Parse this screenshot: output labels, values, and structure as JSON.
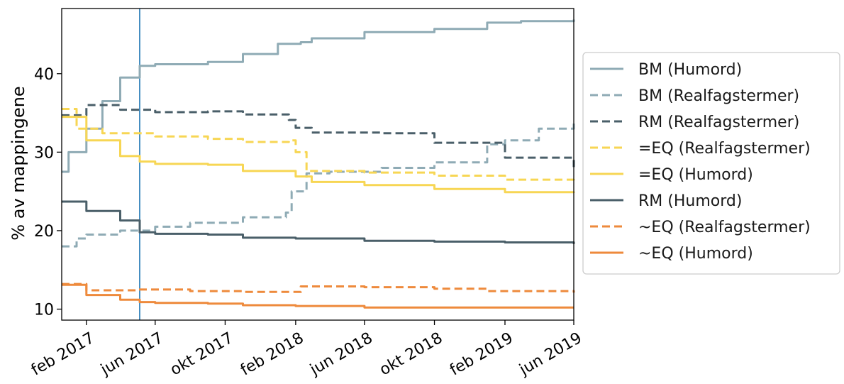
{
  "chart_data": {
    "type": "line",
    "title": "",
    "xlabel": "",
    "ylabel": "% av mappingene",
    "x_range": [
      "2016-12-20",
      "2019-06-01"
    ],
    "ylim": [
      8.6,
      48.3
    ],
    "y_ticks": [
      10,
      20,
      30,
      40
    ],
    "x_ticks": [
      {
        "date": "2017-02-01",
        "label": "feb 2017"
      },
      {
        "date": "2017-06-01",
        "label": "jun 2017"
      },
      {
        "date": "2017-10-01",
        "label": "okt 2017"
      },
      {
        "date": "2018-02-01",
        "label": "feb 2018"
      },
      {
        "date": "2018-06-01",
        "label": "jun 2018"
      },
      {
        "date": "2018-10-01",
        "label": "okt 2018"
      },
      {
        "date": "2019-02-01",
        "label": "feb 2019"
      },
      {
        "date": "2019-06-01",
        "label": "jun 2019"
      }
    ],
    "vertical_marker": {
      "date": "2017-05-05",
      "color": "#1f77b4"
    },
    "grid": false,
    "legend_position": "right",
    "series": [
      {
        "name": "BM (Humord)",
        "color": "#8fabb5",
        "style": "solid",
        "points": [
          [
            "2016-12-20",
            27.5
          ],
          [
            "2017-01-01",
            30
          ],
          [
            "2017-02-01",
            33
          ],
          [
            "2017-03-01",
            36.5
          ],
          [
            "2017-04-01",
            39.5
          ],
          [
            "2017-05-05",
            41
          ],
          [
            "2017-06-01",
            41.2
          ],
          [
            "2017-09-01",
            41.5
          ],
          [
            "2017-11-01",
            42.5
          ],
          [
            "2018-01-01",
            43.8
          ],
          [
            "2018-02-10",
            44
          ],
          [
            "2018-03-01",
            44.5
          ],
          [
            "2018-06-01",
            45.3
          ],
          [
            "2018-10-01",
            45.7
          ],
          [
            "2019-01-01",
            46.5
          ],
          [
            "2019-03-01",
            46.7
          ],
          [
            "2019-06-01",
            46.9
          ]
        ]
      },
      {
        "name": "BM (Realfagstermer)",
        "color": "#8fabb5",
        "style": "dashed",
        "points": [
          [
            "2016-12-20",
            18
          ],
          [
            "2017-01-15",
            19
          ],
          [
            "2017-02-01",
            19.5
          ],
          [
            "2017-04-01",
            20
          ],
          [
            "2017-06-01",
            20.5
          ],
          [
            "2017-08-01",
            21
          ],
          [
            "2017-11-01",
            21.7
          ],
          [
            "2018-01-15",
            22.3
          ],
          [
            "2018-01-25",
            25
          ],
          [
            "2018-02-20",
            27.3
          ],
          [
            "2018-04-01",
            27.5
          ],
          [
            "2018-07-01",
            28
          ],
          [
            "2018-10-01",
            28.7
          ],
          [
            "2019-01-01",
            31
          ],
          [
            "2019-02-01",
            31.5
          ],
          [
            "2019-04-01",
            33
          ],
          [
            "2019-06-01",
            33.8
          ]
        ]
      },
      {
        "name": "RM (Realfagstermer)",
        "color": "#4a5f69",
        "style": "dashed",
        "points": [
          [
            "2016-12-20",
            34.7
          ],
          [
            "2017-02-01",
            36
          ],
          [
            "2017-04-01",
            35.4
          ],
          [
            "2017-06-01",
            35.1
          ],
          [
            "2017-09-01",
            35.2
          ],
          [
            "2017-11-01",
            34.8
          ],
          [
            "2018-01-20",
            34.1
          ],
          [
            "2018-02-01",
            33.1
          ],
          [
            "2018-03-01",
            32.5
          ],
          [
            "2018-07-01",
            32.4
          ],
          [
            "2018-10-01",
            31.2
          ],
          [
            "2019-02-01",
            29.3
          ],
          [
            "2019-06-01",
            28.1
          ]
        ]
      },
      {
        "name": "=EQ (Realfagstermer)",
        "color": "#f7d654",
        "style": "dashed",
        "points": [
          [
            "2016-12-20",
            35.5
          ],
          [
            "2017-01-15",
            33
          ],
          [
            "2017-03-01",
            32.4
          ],
          [
            "2017-06-01",
            32
          ],
          [
            "2017-09-01",
            31.7
          ],
          [
            "2017-11-01",
            31.3
          ],
          [
            "2018-01-20",
            31.5
          ],
          [
            "2018-02-01",
            30
          ],
          [
            "2018-02-20",
            27.6
          ],
          [
            "2018-06-01",
            27.4
          ],
          [
            "2018-10-01",
            27
          ],
          [
            "2019-02-01",
            26.5
          ],
          [
            "2019-06-01",
            26.2
          ]
        ]
      },
      {
        "name": "=EQ (Humord)",
        "color": "#f7d654",
        "style": "solid",
        "points": [
          [
            "2016-12-20",
            34.5
          ],
          [
            "2017-02-01",
            31.5
          ],
          [
            "2017-04-01",
            29.5
          ],
          [
            "2017-05-05",
            28.8
          ],
          [
            "2017-06-01",
            28.5
          ],
          [
            "2017-09-01",
            28.4
          ],
          [
            "2017-11-01",
            27.6
          ],
          [
            "2018-02-01",
            26.9
          ],
          [
            "2018-03-01",
            26.2
          ],
          [
            "2018-06-01",
            25.8
          ],
          [
            "2018-10-01",
            25.3
          ],
          [
            "2019-02-01",
            24.9
          ],
          [
            "2019-06-01",
            24.8
          ]
        ]
      },
      {
        "name": "RM (Humord)",
        "color": "#4a5f69",
        "style": "solid",
        "points": [
          [
            "2016-12-20",
            23.7
          ],
          [
            "2017-02-01",
            22.5
          ],
          [
            "2017-04-01",
            21.3
          ],
          [
            "2017-05-05",
            19.8
          ],
          [
            "2017-06-01",
            19.6
          ],
          [
            "2017-09-01",
            19.5
          ],
          [
            "2017-11-01",
            19.1
          ],
          [
            "2018-02-01",
            19
          ],
          [
            "2018-06-01",
            18.7
          ],
          [
            "2018-10-01",
            18.6
          ],
          [
            "2019-02-01",
            18.5
          ],
          [
            "2019-06-01",
            18.3
          ]
        ]
      },
      {
        "name": "~EQ (Realfagstermer)",
        "color": "#ee8a3c",
        "style": "dashed",
        "points": [
          [
            "2016-12-20",
            13.2
          ],
          [
            "2017-02-01",
            12.4
          ],
          [
            "2017-05-01",
            12.5
          ],
          [
            "2017-08-01",
            12.3
          ],
          [
            "2017-11-01",
            12.2
          ],
          [
            "2018-01-15",
            12.2
          ],
          [
            "2018-02-10",
            12.9
          ],
          [
            "2018-06-01",
            12.8
          ],
          [
            "2018-10-01",
            12.6
          ],
          [
            "2019-01-01",
            12.3
          ],
          [
            "2019-06-01",
            12.1
          ]
        ]
      },
      {
        "name": "~EQ (Humord)",
        "color": "#ee8a3c",
        "style": "solid",
        "points": [
          [
            "2016-12-20",
            13.1
          ],
          [
            "2017-02-01",
            11.8
          ],
          [
            "2017-04-01",
            11.2
          ],
          [
            "2017-05-05",
            10.9
          ],
          [
            "2017-06-01",
            10.8
          ],
          [
            "2017-09-01",
            10.7
          ],
          [
            "2017-11-01",
            10.5
          ],
          [
            "2018-02-01",
            10.4
          ],
          [
            "2018-06-01",
            10.2
          ],
          [
            "2018-10-01",
            10.2
          ],
          [
            "2019-02-01",
            10.2
          ],
          [
            "2019-06-01",
            10.2
          ]
        ]
      }
    ]
  }
}
